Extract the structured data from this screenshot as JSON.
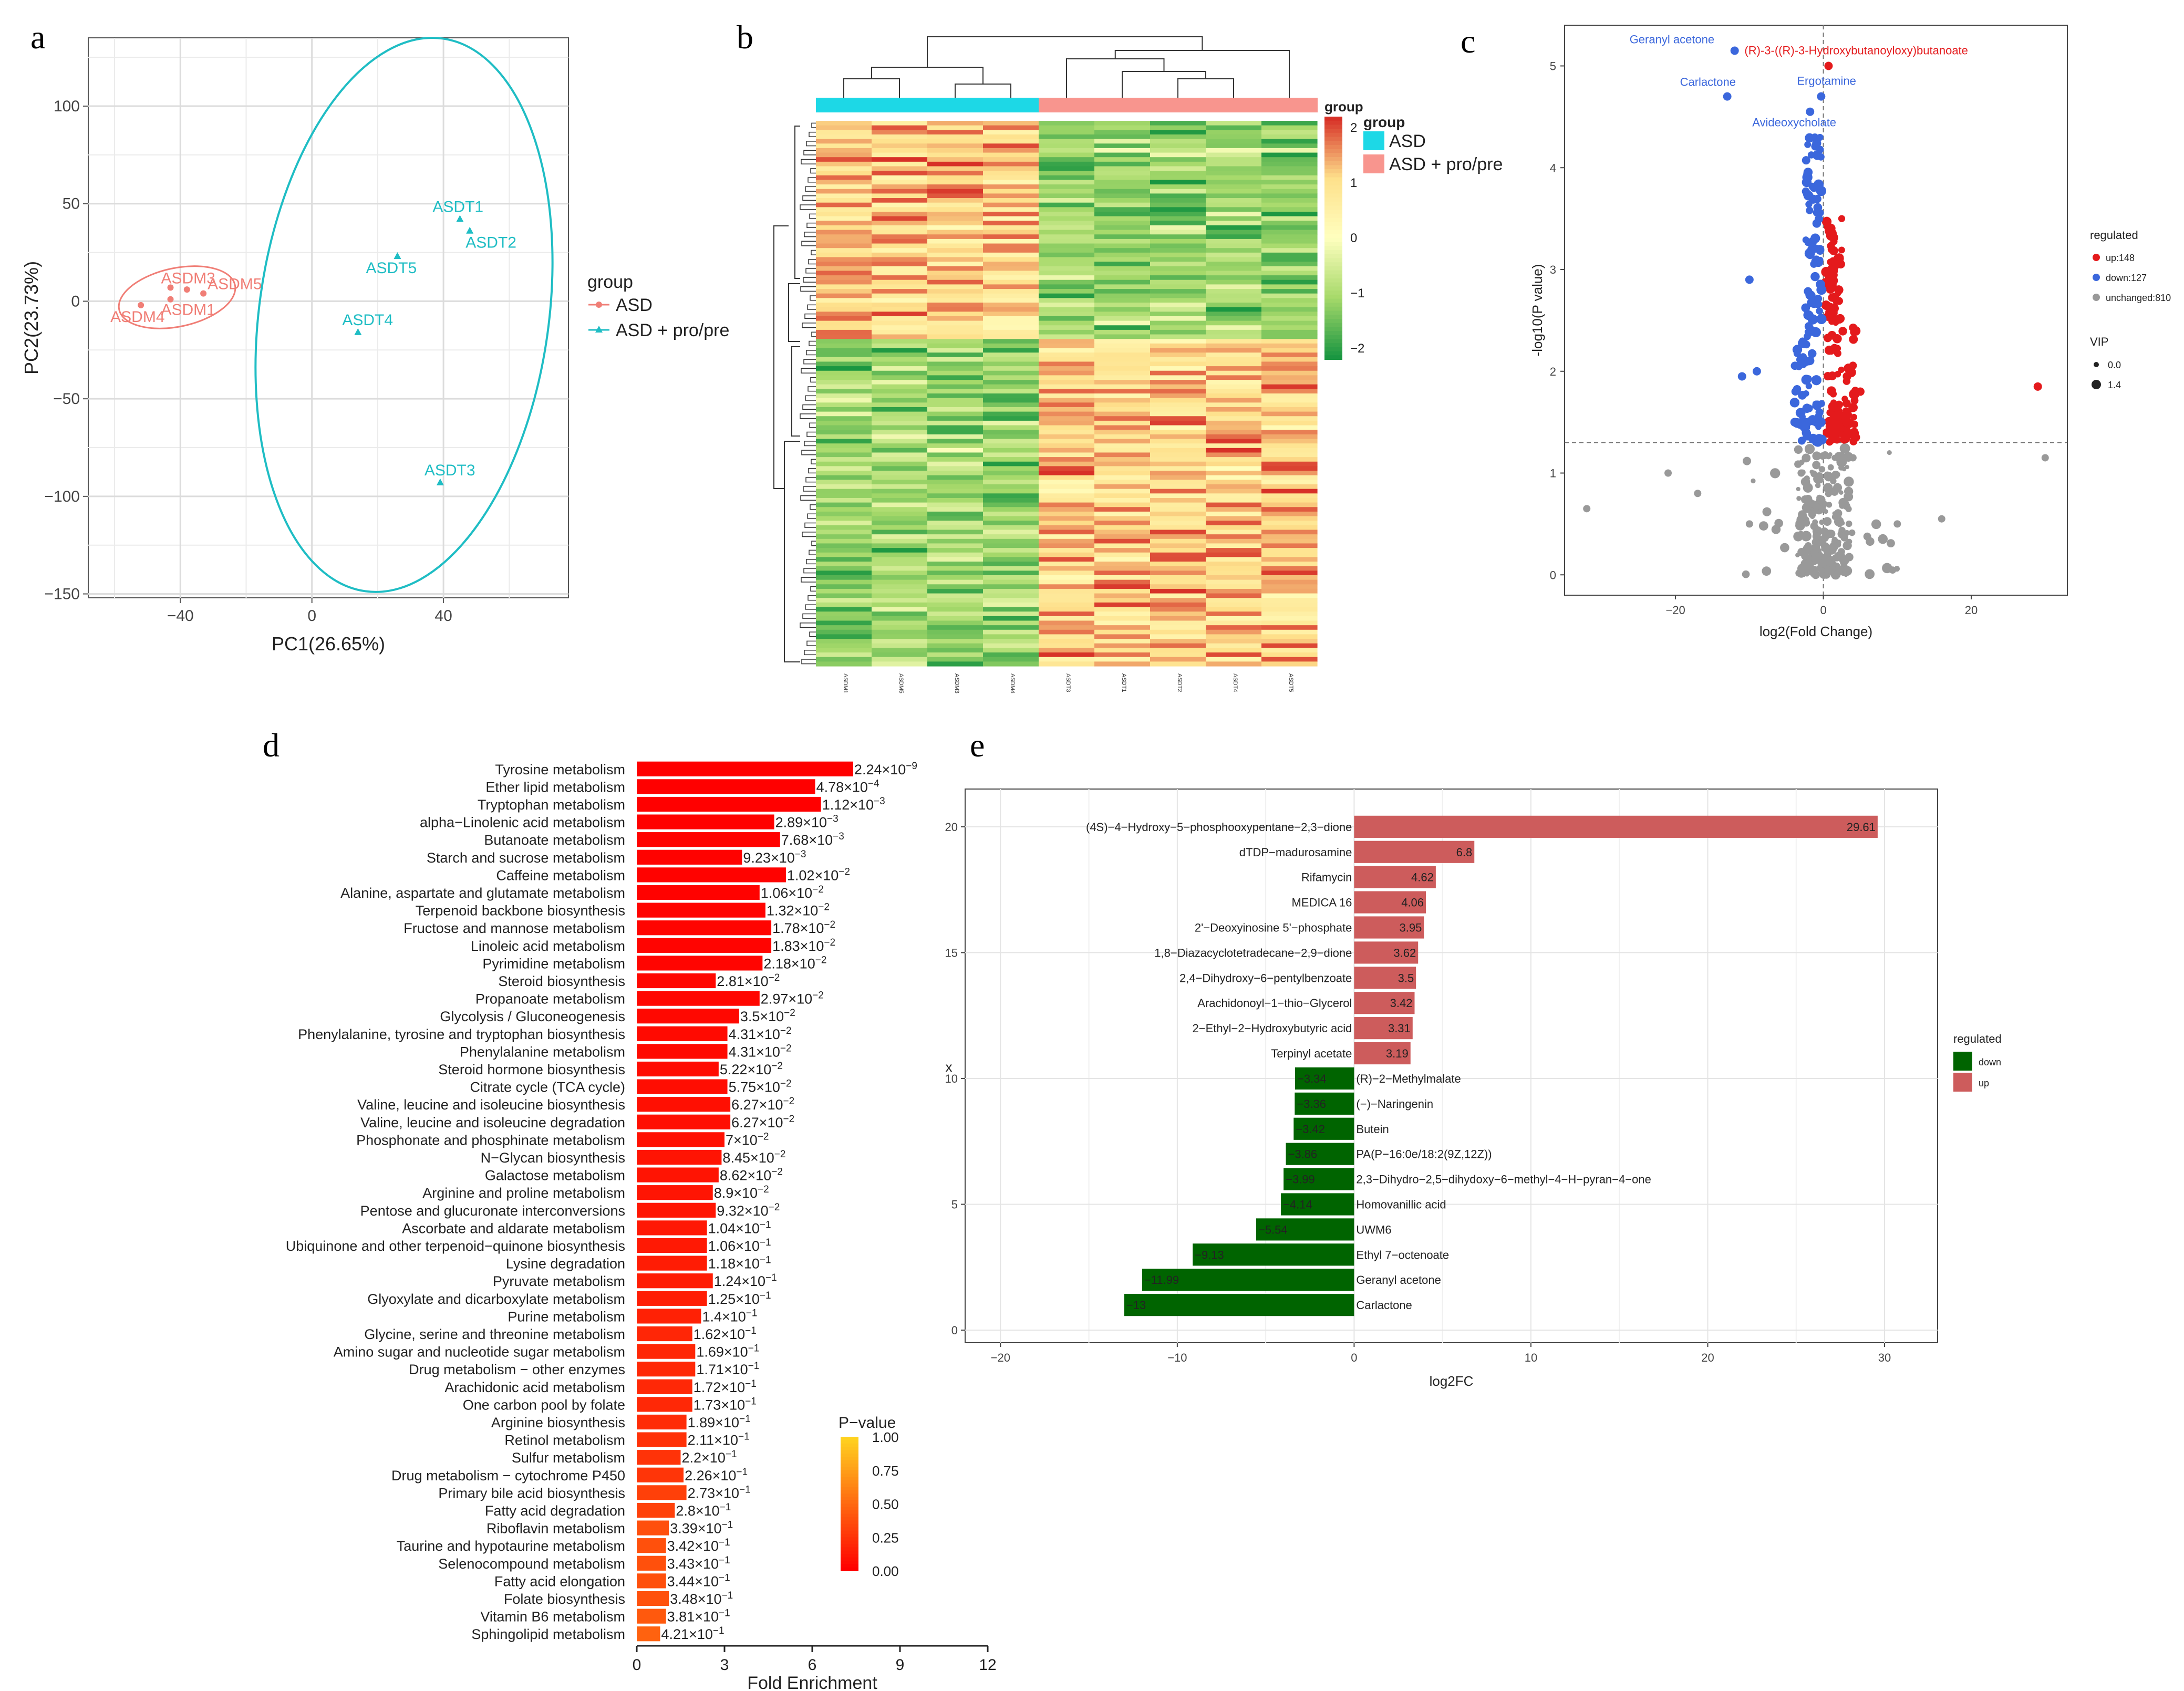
{
  "chart_data": [
    {
      "panel": "a",
      "type": "scatter",
      "xlabel": "PC1(26.65%)",
      "ylabel": "PC2(23.73%)",
      "xlim": [
        -68,
        78
      ],
      "ylim": [
        -152,
        135
      ],
      "xticks": [
        -40,
        0,
        40
      ],
      "yticks": [
        -150,
        -100,
        -50,
        0,
        50,
        100
      ],
      "grid": true,
      "legend": {
        "title": "group",
        "entries": [
          "ASD",
          "ASD + pro/pre"
        ],
        "placement": "right"
      },
      "colors": {
        "ASD": "#f07e76",
        "ASD + pro/pre": "#1fbdc4"
      },
      "series": [
        {
          "name": "ASD",
          "points": [
            {
              "label": "ASDM3",
              "x": -43,
              "y": 7
            },
            {
              "label": "ASDM5",
              "x": -33,
              "y": 4
            },
            {
              "label": "ASDM4",
              "x": -52,
              "y": -2
            },
            {
              "label": "ASDM1",
              "x": -43,
              "y": 1
            },
            {
              "label": "",
              "x": -38,
              "y": 6
            }
          ]
        },
        {
          "name": "ASD + pro/pre",
          "points": [
            {
              "label": "ASDT1",
              "x": 45,
              "y": 42
            },
            {
              "label": "ASDT2",
              "x": 48,
              "y": 36
            },
            {
              "label": "ASDT5",
              "x": 26,
              "y": 23
            },
            {
              "label": "ASDT4",
              "x": 14,
              "y": -16
            },
            {
              "label": "ASDT3",
              "x": 39,
              "y": -93
            }
          ]
        }
      ]
    },
    {
      "panel": "b",
      "type": "heatmap",
      "columns": [
        "ASDM1",
        "ASDM5",
        "ASDM3",
        "ASDM4",
        "ASDT3",
        "ASDT1",
        "ASDT2",
        "ASDT4",
        "ASDT5"
      ],
      "groups": [
        "ASD",
        "ASD",
        "ASD",
        "ASD",
        "ASD + pro/pre",
        "ASD + pro/pre",
        "ASD + pro/pre",
        "ASD + pro/pre",
        "ASD + pro/pre"
      ],
      "colorbar": {
        "title": "group",
        "ticks": [
          2,
          1,
          0,
          -1,
          -2
        ],
        "colors": [
          "#d73027",
          "#fee08b",
          "#ffffbf",
          "#a6d96a",
          "#1a9641"
        ]
      },
      "legend": {
        "title": "group",
        "entries": [
          "ASD",
          "ASD + pro/pre"
        ],
        "colors": [
          "#1dd8e6",
          "#f8958e"
        ]
      }
    },
    {
      "panel": "c",
      "type": "scatter",
      "xlabel": "log2(Fold Change)",
      "ylabel": "-log10(P value)",
      "xlim": [
        -35,
        33
      ],
      "ylim": [
        -0.2,
        5.4
      ],
      "xticks": [
        -20,
        0,
        20
      ],
      "yticks": [
        0,
        1,
        2,
        3,
        4,
        5
      ],
      "threshold": {
        "x": 0,
        "y": 1.3
      },
      "legend": {
        "title": "regulated",
        "entries": [
          "up:148",
          "down:127",
          "unchanged:810"
        ],
        "colors": [
          "#e41a1c",
          "#3b67dc",
          "#999999"
        ]
      },
      "size_legend": {
        "title": "VIP",
        "entries": [
          "0.0",
          "1.4"
        ]
      },
      "annotations": [
        {
          "text": "Geranyl acetone",
          "x": -12,
          "y": 5.15,
          "color": "#3b67dc"
        },
        {
          "text": "(R)-3-((R)-3-Hydroxybutanoyloxy)butanoate",
          "x": 0.7,
          "y": 5.0,
          "color": "#e41a1c"
        },
        {
          "text": "Ergotamine",
          "x": -0.3,
          "y": 4.7,
          "color": "#3b67dc"
        },
        {
          "text": "Carlactone",
          "x": -13,
          "y": 4.7,
          "color": "#3b67dc"
        },
        {
          "text": "Avideoxycholate",
          "x": -1.8,
          "y": 4.55,
          "color": "#3b67dc"
        }
      ]
    },
    {
      "panel": "d",
      "type": "bar",
      "orientation": "horizontal",
      "xlabel": "Fold Enrichment",
      "xlim": [
        0,
        12
      ],
      "xticks": [
        0,
        3,
        6,
        9,
        12
      ],
      "colorbar": {
        "title": "P−value",
        "ticks": [
          "1.00",
          "0.75",
          "0.50",
          "0.25",
          "0.00"
        ],
        "colors": [
          "#ffd21f",
          "#ff0000"
        ]
      },
      "categories": [
        "Tyrosine metabolism",
        "Ether lipid metabolism",
        "Tryptophan metabolism",
        "alpha−Linolenic acid metabolism",
        "Butanoate metabolism",
        "Starch and sucrose metabolism",
        "Caffeine metabolism",
        "Alanine, aspartate and glutamate metabolism",
        "Terpenoid backbone biosynthesis",
        "Fructose and mannose metabolism",
        "Linoleic acid metabolism",
        "Pyrimidine metabolism",
        "Steroid biosynthesis",
        "Propanoate metabolism",
        "Glycolysis / Gluconeogenesis",
        "Phenylalanine, tyrosine and tryptophan biosynthesis",
        "Phenylalanine metabolism",
        "Steroid hormone biosynthesis",
        "Citrate cycle (TCA cycle)",
        "Valine, leucine and isoleucine biosynthesis",
        "Valine, leucine and isoleucine degradation",
        "Phosphonate and phosphinate metabolism",
        "N−Glycan biosynthesis",
        "Galactose metabolism",
        "Arginine and proline metabolism",
        "Pentose and glucuronate interconversions",
        "Ascorbate and aldarate metabolism",
        "Ubiquinone and other terpenoid−quinone biosynthesis",
        "Lysine degradation",
        "Pyruvate metabolism",
        "Glyoxylate and dicarboxylate metabolism",
        "Purine metabolism",
        "Glycine, serine and threonine metabolism",
        "Amino sugar and nucleotide sugar metabolism",
        "Drug metabolism − other enzymes",
        "Arachidonic acid metabolism",
        "One carbon pool by folate",
        "Arginine biosynthesis",
        "Retinol metabolism",
        "Sulfur metabolism",
        "Drug metabolism − cytochrome P450",
        "Primary bile acid biosynthesis",
        "Fatty acid degradation",
        "Riboflavin metabolism",
        "Taurine and hypotaurine metabolism",
        "Selenocompound metabolism",
        "Fatty acid elongation",
        "Folate biosynthesis",
        "Vitamin B6 metabolism",
        "Sphingolipid metabolism"
      ],
      "values": [
        7.4,
        6.1,
        6.3,
        4.7,
        4.9,
        3.6,
        5.1,
        4.2,
        4.4,
        4.6,
        4.6,
        4.3,
        2.7,
        4.2,
        3.5,
        3.1,
        3.1,
        2.8,
        3.1,
        3.2,
        3.2,
        3.0,
        2.9,
        2.8,
        2.6,
        2.7,
        2.4,
        2.4,
        2.4,
        2.6,
        2.4,
        2.2,
        1.9,
        2.0,
        2.0,
        1.9,
        1.9,
        1.7,
        1.7,
        1.5,
        1.6,
        1.7,
        1.3,
        1.1,
        1.0,
        1.0,
        1.0,
        1.1,
        1.0,
        0.8
      ],
      "pvalues": [
        2.24e-09,
        0.000478,
        0.00112,
        0.00289,
        0.00768,
        0.00923,
        0.0102,
        0.0106,
        0.0132,
        0.0178,
        0.0183,
        0.0218,
        0.0281,
        0.0297,
        0.035,
        0.0431,
        0.0431,
        0.0522,
        0.0575,
        0.0627,
        0.0627,
        0.07,
        0.0845,
        0.0862,
        0.089,
        0.0932,
        0.104,
        0.106,
        0.118,
        0.124,
        0.125,
        0.14,
        0.162,
        0.169,
        0.171,
        0.172,
        0.173,
        0.189,
        0.211,
        0.22,
        0.226,
        0.273,
        0.28,
        0.339,
        0.342,
        0.343,
        0.344,
        0.348,
        0.381,
        0.421
      ],
      "labels": [
        [
          "2.24",
          "−9"
        ],
        [
          "4.78",
          "−4"
        ],
        [
          "1.12",
          "−3"
        ],
        [
          "2.89",
          "−3"
        ],
        [
          "7.68",
          "−3"
        ],
        [
          "9.23",
          "−3"
        ],
        [
          "1.02",
          "−2"
        ],
        [
          "1.06",
          "−2"
        ],
        [
          "1.32",
          "−2"
        ],
        [
          "1.78",
          "−2"
        ],
        [
          "1.83",
          "−2"
        ],
        [
          "2.18",
          "−2"
        ],
        [
          "2.81",
          "−2"
        ],
        [
          "2.97",
          "−2"
        ],
        [
          "3.5",
          "−2"
        ],
        [
          "4.31",
          "−2"
        ],
        [
          "4.31",
          "−2"
        ],
        [
          "5.22",
          "−2"
        ],
        [
          "5.75",
          "−2"
        ],
        [
          "6.27",
          "−2"
        ],
        [
          "6.27",
          "−2"
        ],
        [
          "7",
          "−2"
        ],
        [
          "8.45",
          "−2"
        ],
        [
          "8.62",
          "−2"
        ],
        [
          "8.9",
          "−2"
        ],
        [
          "9.32",
          "−2"
        ],
        [
          "1.04",
          "−1"
        ],
        [
          "1.06",
          "−1"
        ],
        [
          "1.18",
          "−1"
        ],
        [
          "1.24",
          "−1"
        ],
        [
          "1.25",
          "−1"
        ],
        [
          "1.4",
          "−1"
        ],
        [
          "1.62",
          "−1"
        ],
        [
          "1.69",
          "−1"
        ],
        [
          "1.71",
          "−1"
        ],
        [
          "1.72",
          "−1"
        ],
        [
          "1.73",
          "−1"
        ],
        [
          "1.89",
          "−1"
        ],
        [
          "2.11",
          "−1"
        ],
        [
          "2.2",
          "−1"
        ],
        [
          "2.26",
          "−1"
        ],
        [
          "2.73",
          "−1"
        ],
        [
          "2.8",
          "−1"
        ],
        [
          "3.39",
          "−1"
        ],
        [
          "3.42",
          "−1"
        ],
        [
          "3.43",
          "−1"
        ],
        [
          "3.44",
          "−1"
        ],
        [
          "3.48",
          "−1"
        ],
        [
          "3.81",
          "−1"
        ],
        [
          "4.21",
          "−1"
        ]
      ]
    },
    {
      "panel": "e",
      "type": "bar",
      "orientation": "horizontal",
      "xlabel": "log2FC",
      "ylabel": "x",
      "xlim": [
        -22,
        33
      ],
      "ylim": [
        -0.5,
        21.5
      ],
      "xticks": [
        -20,
        -10,
        0,
        10,
        20,
        30
      ],
      "yticks": [
        0,
        5,
        10,
        15,
        20
      ],
      "legend": {
        "title": "regulated",
        "entries": [
          "down",
          "up"
        ],
        "colors": [
          "#006400",
          "#cd5c5c"
        ]
      },
      "categories": [
        "Carlactone",
        "Geranyl acetone",
        "Ethyl 7−octenoate",
        "UWM6",
        "Homovanillic acid",
        "2,3−Dihydro−2,5−dihydoxy−6−methyl−4−H−pyran−4−one",
        "PA(P−16:0e/18:2(9Z,12Z))",
        "Butein",
        "(−)−Naringenin",
        "(R)−2−Methylmalate",
        "Terpinyl acetate",
        "2−Ethyl−2−Hydroxybutyric acid",
        "Arachidonoyl−1−thio−Glycerol",
        "2,4−Dihydroxy−6−pentylbenzoate",
        "1,8−Diazacyclotetradecane−2,9−dione",
        "2'−Deoxyinosine 5'−phosphate",
        "MEDICA 16",
        "Rifamycin",
        "dTDP−madurosamine",
        "(4S)−4−Hydroxy−5−phosphooxypentane−2,3−dione"
      ],
      "values": [
        -13,
        -11.99,
        -9.13,
        -5.54,
        -4.14,
        -3.99,
        -3.86,
        -3.42,
        -3.36,
        -3.34,
        3.19,
        3.31,
        3.42,
        3.5,
        3.62,
        3.95,
        4.06,
        4.62,
        6.8,
        29.61
      ],
      "value_labels": [
        "−13",
        "−11.99",
        "−9.13",
        "−5.54",
        "−4.14",
        "−3.99",
        "−3.86",
        "−3.42",
        "−3.36",
        "−3.34",
        "3.19",
        "3.31",
        "3.42",
        "3.5",
        "3.62",
        "3.95",
        "4.06",
        "4.62",
        "6.8",
        "29.61"
      ]
    }
  ],
  "panels": {
    "a": "a",
    "b": "b",
    "c": "c",
    "d": "d",
    "e": "e"
  }
}
